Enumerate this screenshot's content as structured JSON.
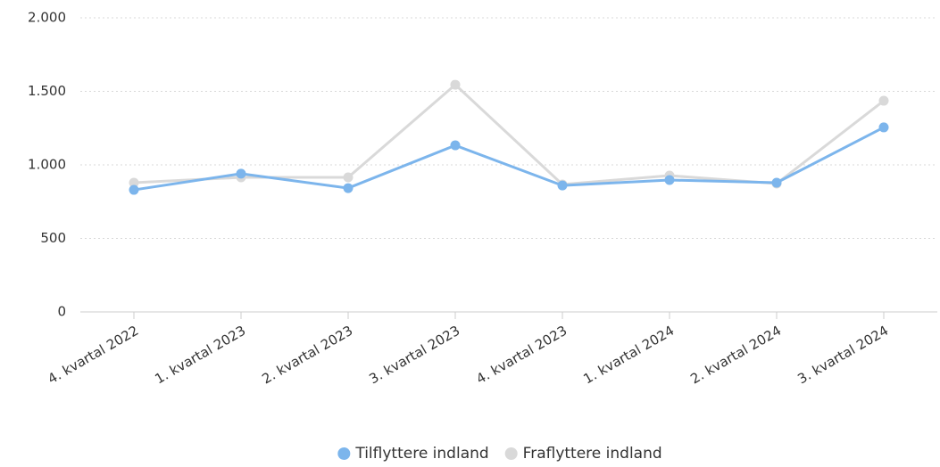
{
  "chart_data": {
    "type": "line",
    "categories": [
      "4. kvartal 2022",
      "1. kvartal 2023",
      "2. kvartal 2023",
      "3. kvartal 2023",
      "4. kvartal 2023",
      "1. kvartal 2024",
      "2. kvartal 2024",
      "3. kvartal 2024"
    ],
    "series": [
      {
        "name": "Tilflyttere indland",
        "color": "#7cb5ec",
        "values": [
          830,
          940,
          842,
          1133,
          860,
          897,
          879,
          1255
        ]
      },
      {
        "name": "Fraflyttere indland",
        "color": "#d9d9d9",
        "values": [
          879,
          915,
          915,
          1545,
          867,
          927,
          873,
          1436
        ]
      }
    ],
    "ylim": [
      0,
      2000
    ],
    "yticks": [
      0,
      500,
      {
        "value": 1000,
        "label": "1.000"
      },
      {
        "value": 1500,
        "label": "1.500"
      },
      {
        "value": 2000,
        "label": "2.000"
      }
    ],
    "grid": true,
    "legend": "bottom"
  }
}
